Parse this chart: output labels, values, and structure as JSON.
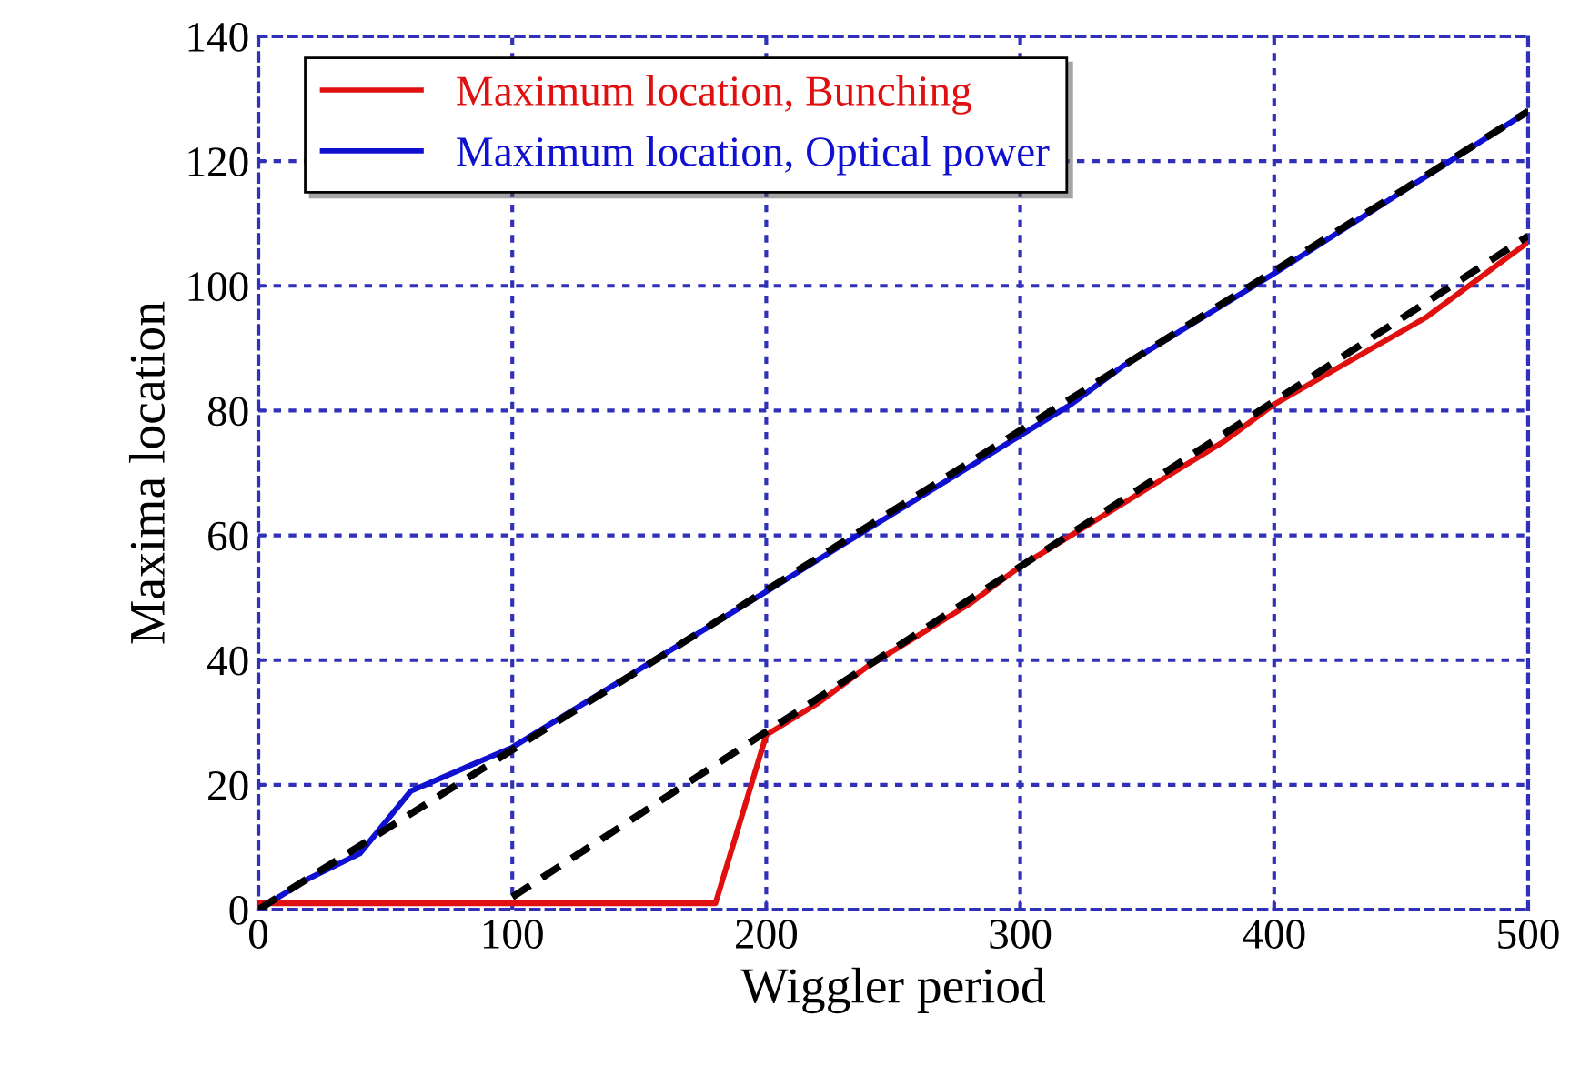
{
  "chart_data": {
    "type": "line",
    "xlabel": "Wiggler period",
    "ylabel": "Maxima location",
    "xlim": [
      0,
      500
    ],
    "ylim": [
      0,
      140
    ],
    "xticks": [
      0,
      100,
      200,
      300,
      400,
      500
    ],
    "yticks": [
      0,
      20,
      40,
      60,
      80,
      100,
      120,
      140
    ],
    "grid": true,
    "legend": "top left",
    "line_style": "solid",
    "marker": "none",
    "series": [
      {
        "name": "Maximum location, Bunching",
        "color": "#e01010",
        "x": [
          0,
          180,
          200,
          220,
          240,
          280,
          300,
          340,
          380,
          400,
          460,
          500
        ],
        "values": [
          1,
          1,
          28,
          33,
          39,
          49,
          55,
          65,
          75,
          81,
          95,
          107
        ]
      },
      {
        "name": "Maximum location, Optical power",
        "color": "#1010d0",
        "x": [
          0,
          20,
          40,
          60,
          100,
          200,
          300,
          320,
          340,
          400,
          500
        ],
        "values": [
          0,
          5,
          9,
          19,
          26,
          51,
          76,
          81,
          87,
          102,
          128
        ]
      },
      {
        "color": "#000000",
        "line_style": "dashed",
        "x": [
          0,
          500
        ],
        "values": [
          0,
          128
        ]
      },
      {
        "color": "#000000",
        "line_style": "dashed",
        "x": [
          100,
          500
        ],
        "values": [
          2,
          108
        ]
      }
    ]
  }
}
